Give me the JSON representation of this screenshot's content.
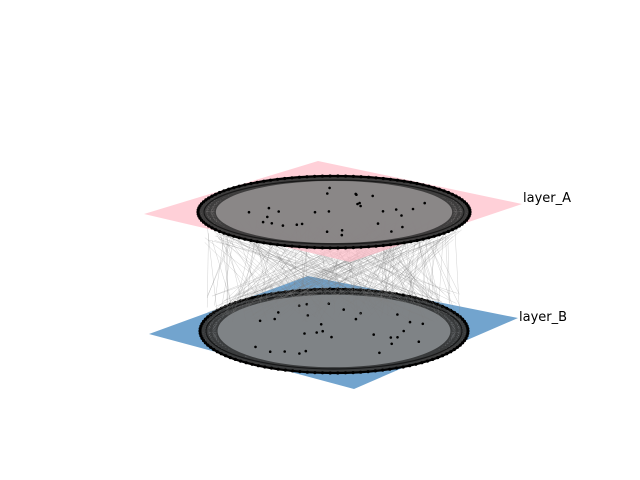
{
  "figure": {
    "type": "multilayer-network",
    "layers": [
      {
        "name": "layer_A",
        "plane_color": "#ffc0cb",
        "node_fill": "#808080",
        "edge_color": "#000000"
      },
      {
        "name": "layer_B",
        "plane_color": "#4a8bc0",
        "node_fill": "#808080",
        "edge_color": "#000000"
      }
    ],
    "interlayer_edge_color": "#808080"
  }
}
